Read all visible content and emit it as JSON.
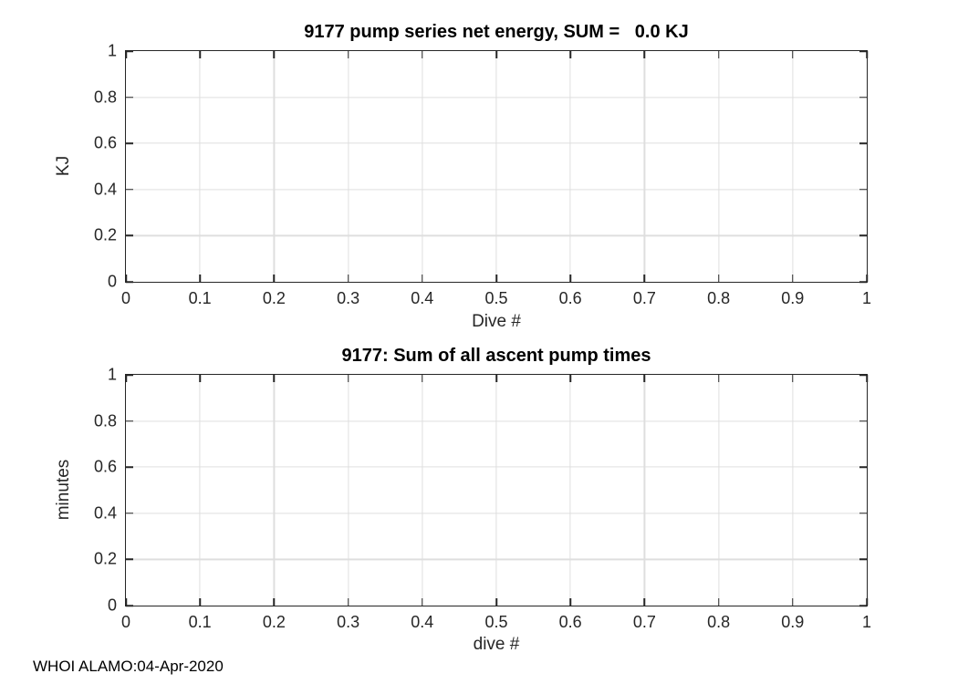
{
  "figure": {
    "background": "#ffffff",
    "footer": "WHOI ALAMO:04-Apr-2020"
  },
  "colors": {
    "axis": "#262626",
    "grid": "#dedede",
    "tick_label": "#262626",
    "title": "#000000"
  },
  "chart_data": [
    {
      "type": "line",
      "title": "9177 pump series net energy, SUM =   0.0 KJ",
      "sum_kj": "0.0",
      "xlabel": "Dive #",
      "ylabel": "KJ",
      "xlim": [
        0,
        1
      ],
      "ylim": [
        0,
        1
      ],
      "xticks": [
        0,
        0.1,
        0.2,
        0.3,
        0.4,
        0.5,
        0.6,
        0.7,
        0.8,
        0.9,
        1
      ],
      "xtick_labels": [
        "0",
        "0.1",
        "0.2",
        "0.3",
        "0.4",
        "0.5",
        "0.6",
        "0.7",
        "0.8",
        "0.9",
        "1"
      ],
      "yticks": [
        0,
        0.2,
        0.4,
        0.6,
        0.8,
        1
      ],
      "ytick_labels": [
        "0",
        "0.2",
        "0.4",
        "0.6",
        "0.8",
        "1"
      ],
      "grid": true,
      "legend": null,
      "series": []
    },
    {
      "type": "line",
      "title": "9177: Sum of all ascent pump times",
      "xlabel": "dive #",
      "ylabel": "minutes",
      "xlim": [
        0,
        1
      ],
      "ylim": [
        0,
        1
      ],
      "xticks": [
        0,
        0.1,
        0.2,
        0.3,
        0.4,
        0.5,
        0.6,
        0.7,
        0.8,
        0.9,
        1
      ],
      "xtick_labels": [
        "0",
        "0.1",
        "0.2",
        "0.3",
        "0.4",
        "0.5",
        "0.6",
        "0.7",
        "0.8",
        "0.9",
        "1"
      ],
      "yticks": [
        0,
        0.2,
        0.4,
        0.6,
        0.8,
        1
      ],
      "ytick_labels": [
        "0",
        "0.2",
        "0.4",
        "0.6",
        "0.8",
        "1"
      ],
      "grid": true,
      "legend": null,
      "series": []
    }
  ]
}
